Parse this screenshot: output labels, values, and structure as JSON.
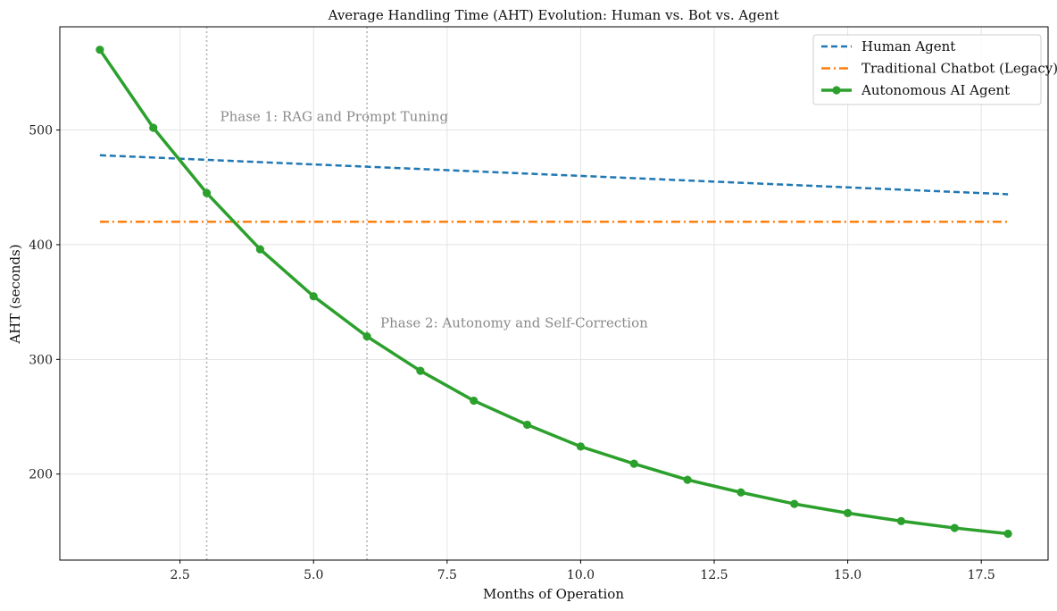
{
  "chart_data": {
    "type": "line",
    "title": "Average Handling Time (AHT) Evolution: Human vs. Bot vs. Agent",
    "xlabel": "Months of Operation",
    "ylabel": "AHT (seconds)",
    "xlim": [
      0.25,
      18.75
    ],
    "ylim": [
      125,
      590
    ],
    "xticks": [
      2.5,
      5.0,
      7.5,
      10.0,
      12.5,
      15.0,
      17.5
    ],
    "xtick_labels": [
      "2.5",
      "5.0",
      "7.5",
      "10.0",
      "12.5",
      "15.0",
      "17.5"
    ],
    "yticks": [
      200,
      300,
      400,
      500
    ],
    "ytick_labels": [
      "200",
      "300",
      "400",
      "500"
    ],
    "grid": true,
    "legend_position": "top-right",
    "x": [
      1,
      2,
      3,
      4,
      5,
      6,
      7,
      8,
      9,
      10,
      11,
      12,
      13,
      14,
      15,
      16,
      17,
      18
    ],
    "series": [
      {
        "name": "Human Agent",
        "color": "#1f77b4",
        "style": "dashed",
        "values": [
          478,
          476,
          474,
          472,
          470,
          468,
          466,
          464,
          462,
          460,
          458,
          456,
          454,
          452,
          450,
          448,
          446,
          444
        ]
      },
      {
        "name": "Traditional Chatbot (Legacy)",
        "color": "#ff7f0e",
        "style": "dashdot",
        "values": [
          420,
          420,
          420,
          420,
          420,
          420,
          420,
          420,
          420,
          420,
          420,
          420,
          420,
          420,
          420,
          420,
          420,
          420
        ]
      },
      {
        "name": "Autonomous AI Agent",
        "color": "#2ca02c",
        "style": "solid-markers",
        "values": [
          570,
          502,
          445,
          396,
          355,
          320,
          290,
          264,
          243,
          224,
          209,
          195,
          184,
          174,
          166,
          159,
          153,
          148
        ]
      }
    ],
    "vlines": [
      3,
      6
    ],
    "annotations": [
      {
        "text": "Phase 1: RAG and Prompt Tuning",
        "x": 3.25,
        "y": 508
      },
      {
        "text": "Phase 2: Autonomy and Self-Correction",
        "x": 6.25,
        "y": 328
      }
    ]
  }
}
